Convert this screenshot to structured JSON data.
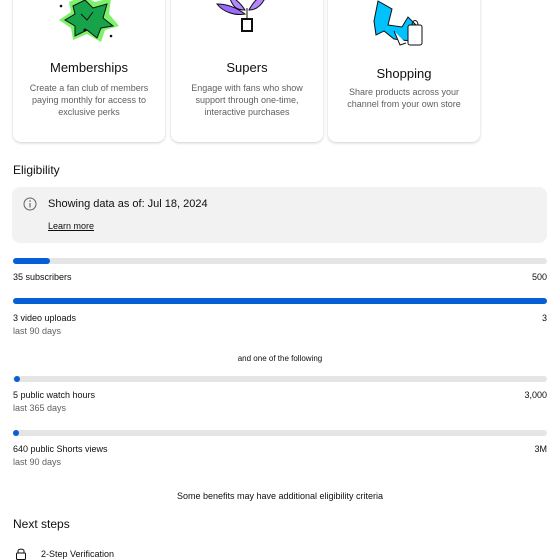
{
  "cards": [
    {
      "title": "Memberships",
      "description": "Create a fan club of members paying monthly for access to exclusive perks",
      "icon": "star-illustration"
    },
    {
      "title": "Supers",
      "description": "Engage with fans who show support through one-time, interactive purchases",
      "icon": "plant-illustration"
    },
    {
      "title": "Shopping",
      "description": "Share products across your channel from your own store",
      "icon": "shopping-bag-illustration"
    }
  ],
  "eligibility": {
    "title": "Eligibility",
    "info_text": "Showing data as of: Jul 18, 2024",
    "learn_more": "Learn more"
  },
  "metrics": {
    "subscribers": {
      "label": "35 subscribers",
      "max": "500",
      "progress": 0.07
    },
    "uploads": {
      "label": "3 video uploads",
      "sub": "last 90 days",
      "max": "3",
      "progress": 1.0
    },
    "watch_hours": {
      "label": "5 public watch hours",
      "sub": "last 365 days",
      "max": "3,000",
      "progress": 0.0017
    },
    "shorts_views": {
      "label": "640 public Shorts views",
      "sub": "last 90 days",
      "max": "3M",
      "progress": 0.0002
    }
  },
  "one_of_following": "and one of the following",
  "benefits_note": "Some benefits may have additional eligibility criteria",
  "next_steps": {
    "title": "Next steps",
    "items": [
      {
        "label": "2-Step Verification",
        "icon": "lock-icon"
      }
    ]
  },
  "colors": {
    "accent": "#065fd4",
    "track": "#e5e5e5",
    "info_bg": "#f2f2f2"
  }
}
